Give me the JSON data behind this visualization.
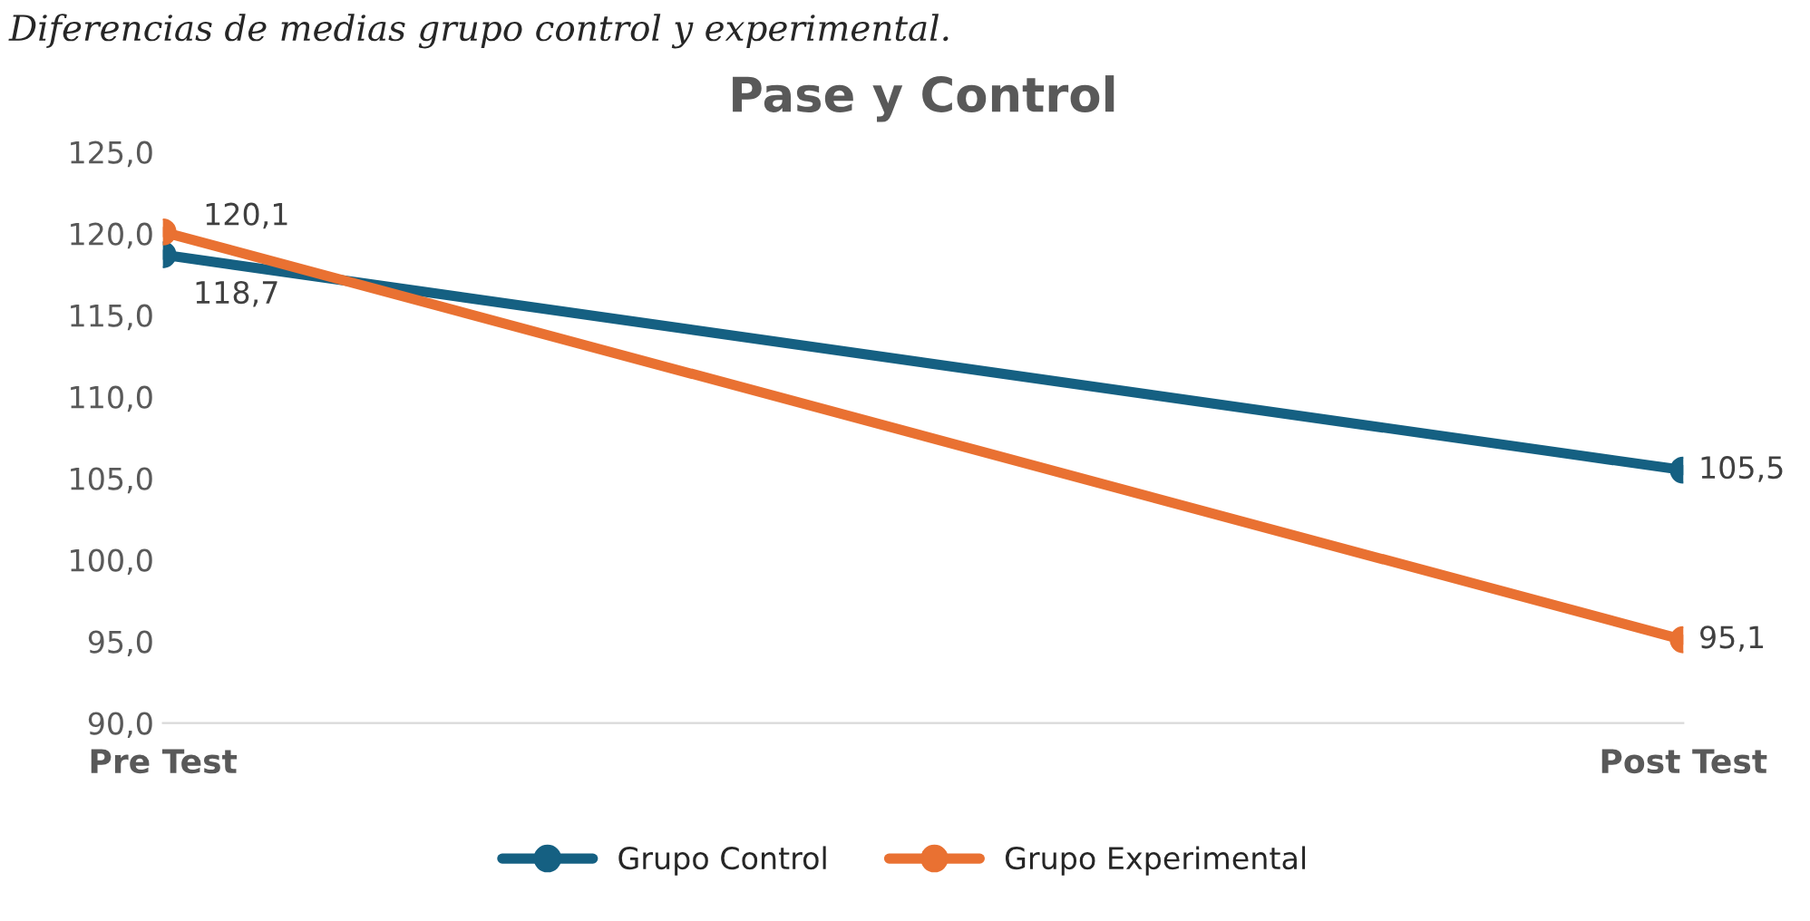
{
  "chart_data": {
    "type": "line",
    "title": "Pase y Control",
    "annotations": [
      "Diferencias de medias grupo control y experimental."
    ],
    "categories": [
      "Pre Test",
      "Post Test"
    ],
    "series": [
      {
        "name": "Grupo Control",
        "color": "#156082",
        "values": [
          118.7,
          105.5
        ],
        "value_labels": [
          "118,7",
          "105,5"
        ]
      },
      {
        "name": "Grupo Experimental",
        "color": "#e97132",
        "values": [
          120.1,
          95.1
        ],
        "value_labels": [
          "120,1",
          "95,1"
        ]
      }
    ],
    "ylim": [
      90,
      125
    ],
    "yticks": [
      {
        "value": 90,
        "label": "90,0"
      },
      {
        "value": 95,
        "label": "95,0"
      },
      {
        "value": 100,
        "label": "100,0"
      },
      {
        "value": 105,
        "label": "105,0"
      },
      {
        "value": 110,
        "label": "110,0"
      },
      {
        "value": 115,
        "label": "115,0"
      },
      {
        "value": 120,
        "label": "120,0"
      },
      {
        "value": 125,
        "label": "125,0"
      }
    ],
    "grid": false,
    "legend": "bottom",
    "marker": "circle",
    "line_style": "solid"
  }
}
